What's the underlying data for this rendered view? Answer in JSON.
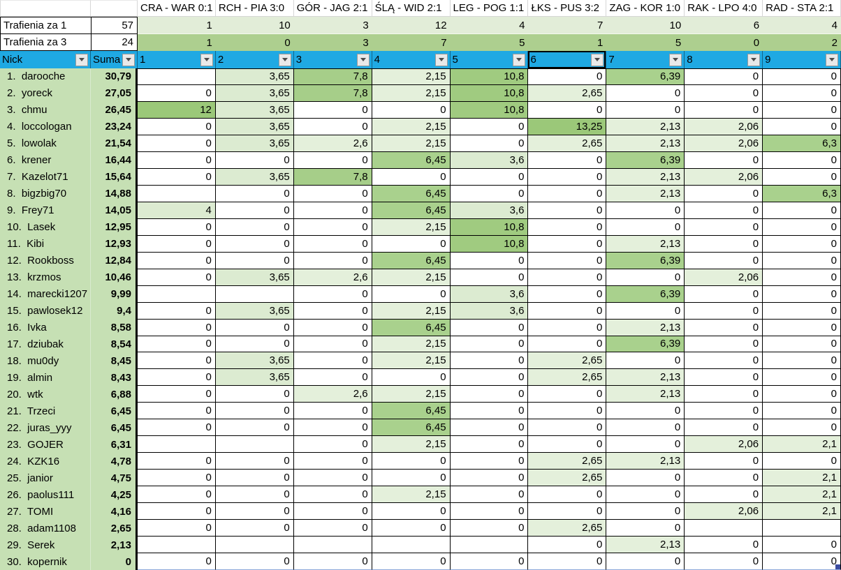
{
  "matches": [
    "CRA - WAR 0:1",
    "RCH - PIA 3:0",
    "GÓR - JAG 2:1",
    "ŚLĄ - WID 2:1",
    "LEG - POG 1:1",
    "ŁKS - PUS 3:2",
    "ZAG - KOR 1:0",
    "RAK - LPO 4:0",
    "RAD - STA 2:1"
  ],
  "hits_rows": [
    {
      "label": "Trafienia za 1",
      "total": "57",
      "values": [
        "1",
        "10",
        "3",
        "12",
        "4",
        "7",
        "10",
        "6",
        "4"
      ]
    },
    {
      "label": "Trafienia za 3",
      "total": "24",
      "values": [
        "1",
        "0",
        "3",
        "7",
        "5",
        "1",
        "5",
        "0",
        "2"
      ]
    }
  ],
  "filter_row": {
    "nick_label": "Nick",
    "suma_label": "Suma",
    "columns": [
      "1",
      "2",
      "3",
      "4",
      "5",
      "6",
      "7",
      "8",
      "9"
    ],
    "selected_column_index": 5
  },
  "players": [
    {
      "rank": 1,
      "nick": "darooche",
      "suma": "30,79",
      "values": [
        "",
        "3,65",
        "7,8",
        "2,15",
        "10,8",
        "0",
        "6,39",
        "0",
        "0"
      ]
    },
    {
      "rank": 2,
      "nick": "yoreck",
      "suma": "27,05",
      "values": [
        "0",
        "3,65",
        "7,8",
        "2,15",
        "10,8",
        "2,65",
        "0",
        "0",
        "0"
      ]
    },
    {
      "rank": 3,
      "nick": "chmu",
      "suma": "26,45",
      "values": [
        "12",
        "3,65",
        "0",
        "0",
        "10,8",
        "0",
        "0",
        "0",
        "0"
      ]
    },
    {
      "rank": 4,
      "nick": "loccologan",
      "suma": "23,24",
      "values": [
        "0",
        "3,65",
        "0",
        "2,15",
        "0",
        "13,25",
        "2,13",
        "2,06",
        "0"
      ]
    },
    {
      "rank": 5,
      "nick": "lowolak",
      "suma": "21,54",
      "values": [
        "0",
        "3,65",
        "2,6",
        "2,15",
        "0",
        "2,65",
        "2,13",
        "2,06",
        "6,3"
      ]
    },
    {
      "rank": 6,
      "nick": "krener",
      "suma": "16,44",
      "values": [
        "0",
        "0",
        "0",
        "6,45",
        "3,6",
        "0",
        "6,39",
        "0",
        "0"
      ]
    },
    {
      "rank": 7,
      "nick": "Kazelot71",
      "suma": "15,64",
      "values": [
        "0",
        "3,65",
        "7,8",
        "0",
        "0",
        "0",
        "2,13",
        "2,06",
        "0"
      ]
    },
    {
      "rank": 8,
      "nick": "bigzbig70",
      "suma": "14,88",
      "values": [
        "",
        "0",
        "0",
        "6,45",
        "0",
        "0",
        "2,13",
        "0",
        "6,3"
      ]
    },
    {
      "rank": 9,
      "nick": "Frey71",
      "suma": "14,05",
      "values": [
        "4",
        "0",
        "0",
        "6,45",
        "3,6",
        "0",
        "0",
        "0",
        "0"
      ]
    },
    {
      "rank": 10,
      "nick": "Lasek",
      "suma": "12,95",
      "values": [
        "0",
        "0",
        "0",
        "2,15",
        "10,8",
        "0",
        "0",
        "0",
        "0"
      ]
    },
    {
      "rank": 11,
      "nick": "Kibi",
      "suma": "12,93",
      "values": [
        "0",
        "0",
        "0",
        "0",
        "10,8",
        "0",
        "2,13",
        "0",
        "0"
      ]
    },
    {
      "rank": 12,
      "nick": "Rookboss",
      "suma": "12,84",
      "values": [
        "0",
        "0",
        "0",
        "6,45",
        "0",
        "0",
        "6,39",
        "0",
        "0"
      ]
    },
    {
      "rank": 13,
      "nick": "krzmos",
      "suma": "10,46",
      "values": [
        "0",
        "3,65",
        "2,6",
        "2,15",
        "0",
        "0",
        "0",
        "2,06",
        "0"
      ]
    },
    {
      "rank": 14,
      "nick": "marecki1207",
      "suma": "9,99",
      "values": [
        "",
        "",
        "0",
        "0",
        "3,6",
        "0",
        "6,39",
        "0",
        "0"
      ]
    },
    {
      "rank": 15,
      "nick": "pawlosek12",
      "suma": "9,4",
      "values": [
        "0",
        "3,65",
        "0",
        "2,15",
        "3,6",
        "0",
        "0",
        "0",
        "0"
      ]
    },
    {
      "rank": 16,
      "nick": "Ivka",
      "suma": "8,58",
      "values": [
        "0",
        "0",
        "0",
        "6,45",
        "0",
        "0",
        "2,13",
        "0",
        "0"
      ]
    },
    {
      "rank": 17,
      "nick": "dziubak",
      "suma": "8,54",
      "values": [
        "0",
        "0",
        "0",
        "2,15",
        "0",
        "0",
        "6,39",
        "0",
        "0"
      ]
    },
    {
      "rank": 18,
      "nick": "mu0dy",
      "suma": "8,45",
      "values": [
        "0",
        "3,65",
        "0",
        "2,15",
        "0",
        "2,65",
        "0",
        "0",
        "0"
      ]
    },
    {
      "rank": 19,
      "nick": "almin",
      "suma": "8,43",
      "values": [
        "0",
        "3,65",
        "0",
        "0",
        "0",
        "2,65",
        "2,13",
        "0",
        "0"
      ]
    },
    {
      "rank": 20,
      "nick": "wtk",
      "suma": "6,88",
      "values": [
        "0",
        "0",
        "2,6",
        "2,15",
        "0",
        "0",
        "2,13",
        "0",
        "0"
      ]
    },
    {
      "rank": 21,
      "nick": "Trzeci",
      "suma": "6,45",
      "values": [
        "0",
        "0",
        "0",
        "6,45",
        "0",
        "0",
        "0",
        "0",
        "0"
      ]
    },
    {
      "rank": 22,
      "nick": "juras_yyy",
      "suma": "6,45",
      "values": [
        "0",
        "0",
        "0",
        "6,45",
        "0",
        "0",
        "0",
        "0",
        "0"
      ]
    },
    {
      "rank": 23,
      "nick": "GOJER",
      "suma": "6,31",
      "values": [
        "",
        "",
        "0",
        "2,15",
        "0",
        "0",
        "0",
        "2,06",
        "2,1"
      ]
    },
    {
      "rank": 24,
      "nick": "KZK16",
      "suma": "4,78",
      "values": [
        "0",
        "0",
        "0",
        "0",
        "0",
        "2,65",
        "2,13",
        "0",
        "0"
      ]
    },
    {
      "rank": 25,
      "nick": "janior",
      "suma": "4,75",
      "values": [
        "0",
        "0",
        "0",
        "0",
        "0",
        "2,65",
        "0",
        "0",
        "2,1"
      ]
    },
    {
      "rank": 26,
      "nick": "paolus111",
      "suma": "4,25",
      "values": [
        "0",
        "0",
        "0",
        "2,15",
        "0",
        "0",
        "0",
        "0",
        "2,1"
      ]
    },
    {
      "rank": 27,
      "nick": "TOMI",
      "suma": "4,16",
      "values": [
        "0",
        "0",
        "0",
        "0",
        "0",
        "0",
        "0",
        "2,06",
        "2,1"
      ]
    },
    {
      "rank": 28,
      "nick": "adam1108",
      "suma": "2,65",
      "values": [
        "0",
        "0",
        "0",
        "0",
        "0",
        "2,65",
        "0",
        "",
        ""
      ]
    },
    {
      "rank": 29,
      "nick": "Serek",
      "suma": "2,13",
      "values": [
        "",
        "",
        "",
        "",
        "",
        "0",
        "2,13",
        "0",
        "0"
      ]
    },
    {
      "rank": 30,
      "nick": "kopernik",
      "suma": "0",
      "values": [
        "0",
        "0",
        "0",
        "0",
        "0",
        "0",
        "0",
        "0",
        "0"
      ]
    }
  ],
  "colors": {
    "filter_blue": "#1FA9E3",
    "sidebar_green": "#C6E0B4",
    "band_light": "#E2EDD8",
    "band_medium": "#ADCF8F",
    "cell_border": "#000000",
    "table_end_blue": "#3B4CA0",
    "scale": [
      {
        "max": 0,
        "color": "#FFFFFF"
      },
      {
        "max": 3,
        "color": "#E4F0DB"
      },
      {
        "max": 5,
        "color": "#DCEBD1"
      },
      {
        "max": 7,
        "color": "#A9D18D"
      },
      {
        "max": 9,
        "color": "#A6CE89"
      },
      {
        "max": 11.5,
        "color": "#A0CB80"
      },
      {
        "max": 99,
        "color": "#9BC879"
      }
    ]
  }
}
